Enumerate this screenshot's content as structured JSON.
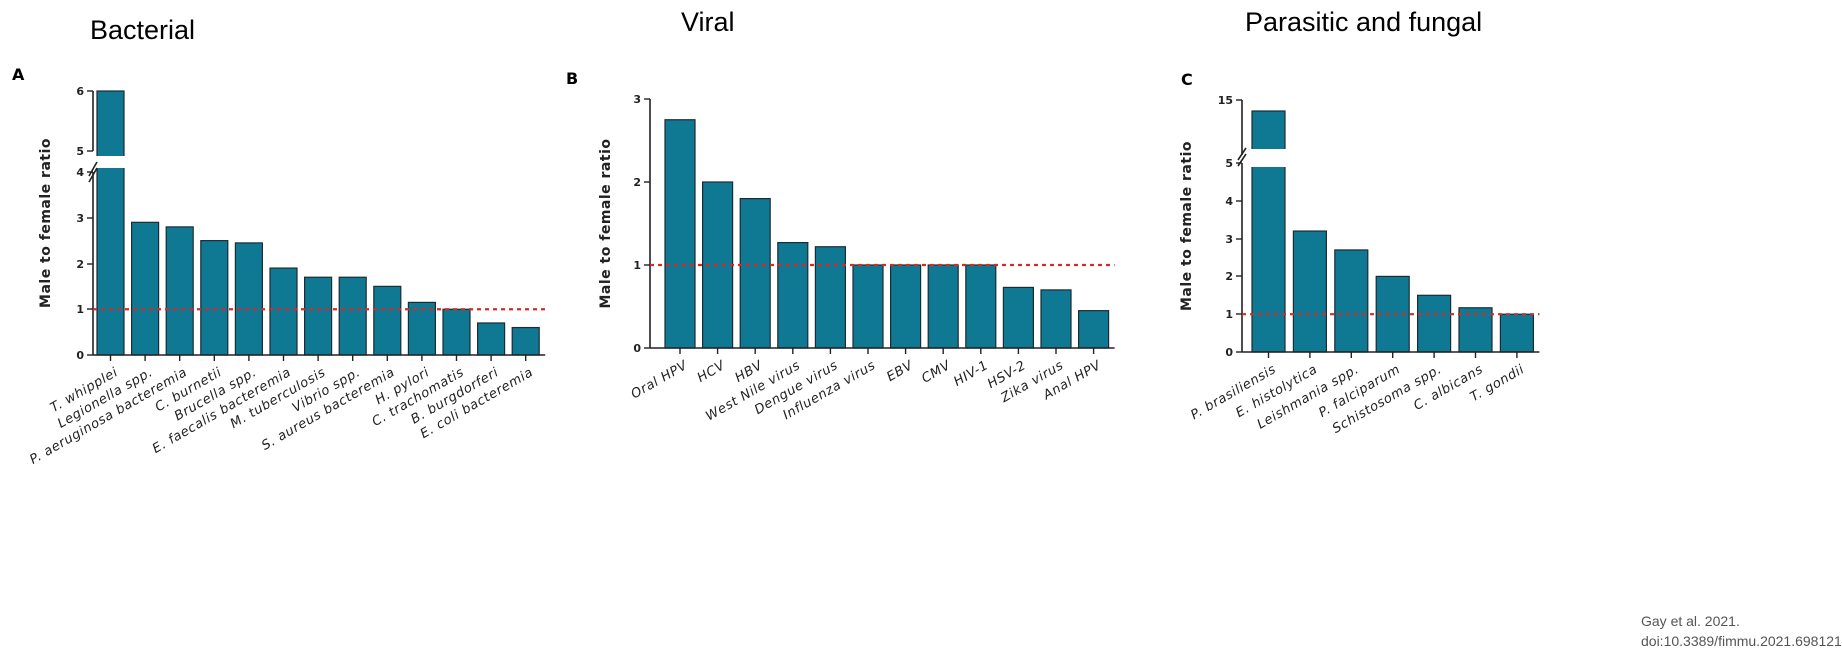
{
  "headings": [
    "Bacterial",
    "Viral",
    "Parasitic and fungal"
  ],
  "citation": {
    "line1": "Gay et al. 2021.",
    "line2": "doi:10.3389/fimmu.2021.698121"
  },
  "colors": {
    "bar": "#0f7893",
    "reference_line": "#d42a2a",
    "axis": "#222222"
  },
  "chart_data": [
    {
      "panel": "A",
      "type": "bar",
      "ylabel": "Male to female ratio",
      "ylim": [
        0,
        6
      ],
      "axis_break": [
        4,
        5
      ],
      "yticks": [
        0,
        1,
        2,
        3,
        4,
        5,
        6
      ],
      "reference_line": 1,
      "categories": [
        "T. whipplei",
        "Legionella spp.",
        "P. aeruginosa bacteremia",
        "C. burnetii",
        "Brucella spp.",
        "E. faecalis bacteremia",
        "M. tuberculosis",
        "Vibrio spp.",
        "S. aureus bacteremia",
        "H. pylori",
        "C. trachomatis",
        "B. burgdorferi",
        "E. coli bacteremia"
      ],
      "values": [
        6.0,
        2.9,
        2.8,
        2.5,
        2.45,
        1.9,
        1.7,
        1.7,
        1.5,
        1.15,
        1.0,
        0.7,
        0.6
      ]
    },
    {
      "panel": "B",
      "type": "bar",
      "ylabel": "Male to female ratio",
      "ylim": [
        0,
        3
      ],
      "yticks": [
        0,
        1,
        2,
        3
      ],
      "reference_line": 1,
      "categories": [
        "Oral HPV",
        "HCV",
        "HBV",
        "West Nile virus",
        "Dengue virus",
        "Influenza virus",
        "EBV",
        "CMV",
        "HIV-1",
        "HSV-2",
        "Zika virus",
        "Anal HPV"
      ],
      "values": [
        2.75,
        2.0,
        1.8,
        1.27,
        1.22,
        1.0,
        1.0,
        1.0,
        1.0,
        0.73,
        0.7,
        0.45
      ]
    },
    {
      "panel": "C",
      "type": "bar",
      "ylabel": "Male to female ratio",
      "ylim": [
        0,
        15
      ],
      "axis_break": [
        5,
        15
      ],
      "yticks": [
        0,
        1,
        2,
        3,
        4,
        5,
        15
      ],
      "reference_line": 1,
      "categories": [
        "P. brasiliensis",
        "E. histolytica",
        "Leishmania spp.",
        "P. falciparum",
        "Schistosoma spp.",
        "C. albicans",
        "T. gondii"
      ],
      "values": [
        13,
        3.2,
        2.7,
        2.0,
        1.5,
        1.17,
        1.0
      ]
    }
  ]
}
